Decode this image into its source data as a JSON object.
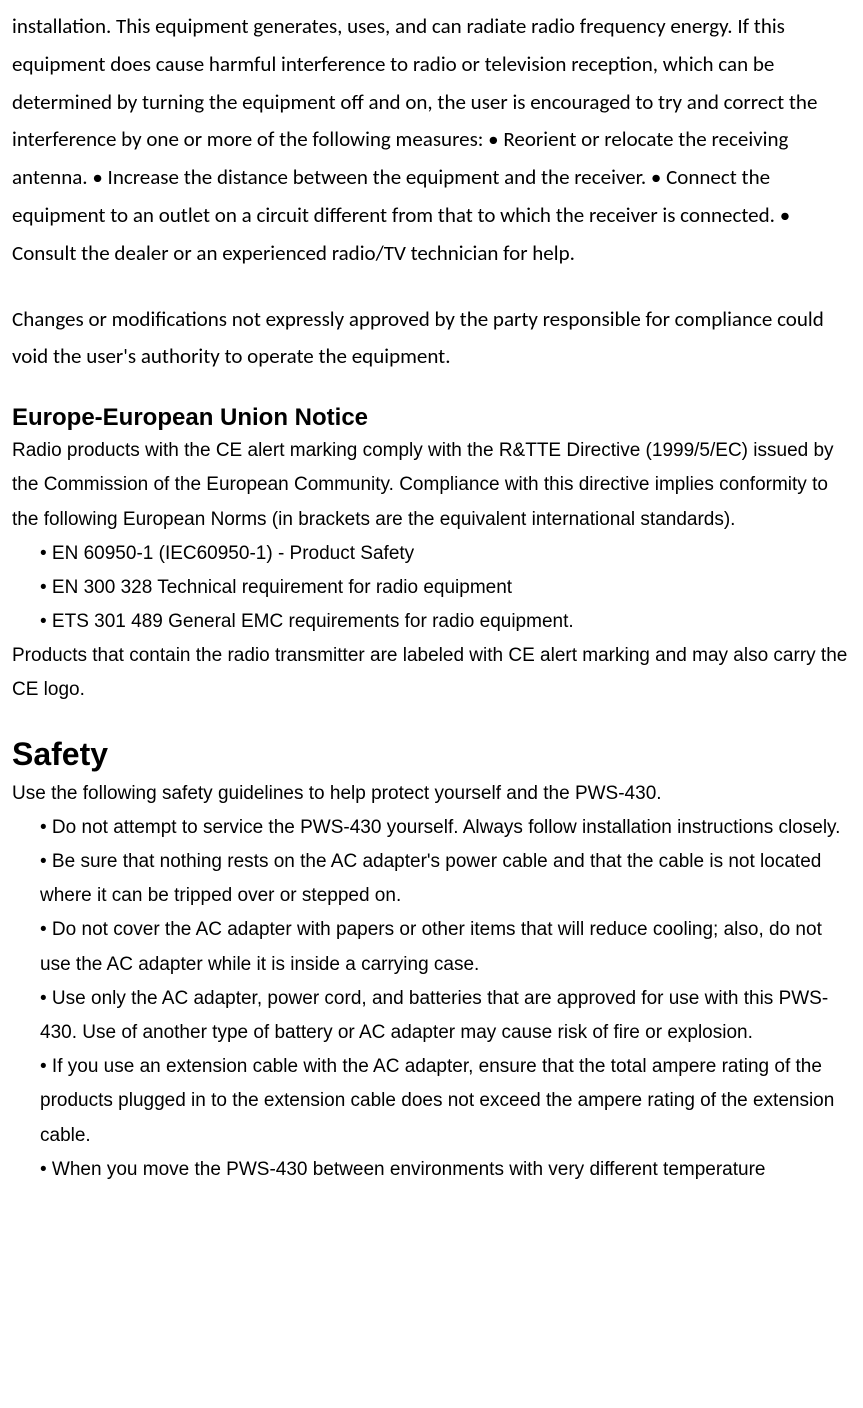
{
  "fcc": {
    "para1": "installation. This equipment generates, uses, and can radiate radio frequency energy. If this equipment does cause harmful interference to radio or television reception, which can be determined by turning the equipment off and on, the user is encouraged to try and correct the interference by one or more of the following measures: • Reorient or relocate the receiving antenna. • Increase the distance between the equipment and the receiver. • Connect the equipment to an outlet on a circuit different from that to which the receiver is connected. • Consult the dealer or an experienced radio/TV technician for help.",
    "para2": "Changes or modifications not expressly approved by the party responsible for compliance could void the user's authority to operate the equipment."
  },
  "eu": {
    "heading": "Europe-European Union Notice",
    "intro": "Radio products with the CE alert marking comply with the R&TTE Directive (1999/5/EC) issued by the Commission of the European Community. Compliance with this directive implies conformity to the following European Norms (in brackets are the equivalent international standards).",
    "items": [
      "• EN 60950-1 (IEC60950-1) - Product Safety",
      "• EN 300 328 Technical requirement for radio equipment",
      "• ETS 301 489 General EMC requirements for radio equipment."
    ],
    "outro": "Products that contain the radio transmitter are labeled with CE alert marking and may also carry the CE logo."
  },
  "safety": {
    "heading": "Safety",
    "intro": "Use the following safety guidelines to help protect yourself and the PWS-430.",
    "items": [
      "• Do not attempt to service the PWS-430 yourself. Always follow installation instructions closely.",
      "• Be sure that nothing rests on the AC adapter's power cable and that the cable is not located where it can be tripped over or stepped on.",
      "• Do not cover the AC adapter with papers or other items that will reduce cooling; also, do not use the AC adapter while it is inside a carrying case.",
      "• Use only the AC adapter, power cord, and batteries that are approved for use with this PWS-430. Use of another type of battery or AC adapter may cause risk of fire or explosion.",
      "• If you use an extension cable with the AC adapter, ensure that the total ampere rating of the products plugged in to the extension cable does not exceed the ampere rating of the extension cable.",
      "• When you move the PWS-430 between environments with very different temperature"
    ]
  }
}
